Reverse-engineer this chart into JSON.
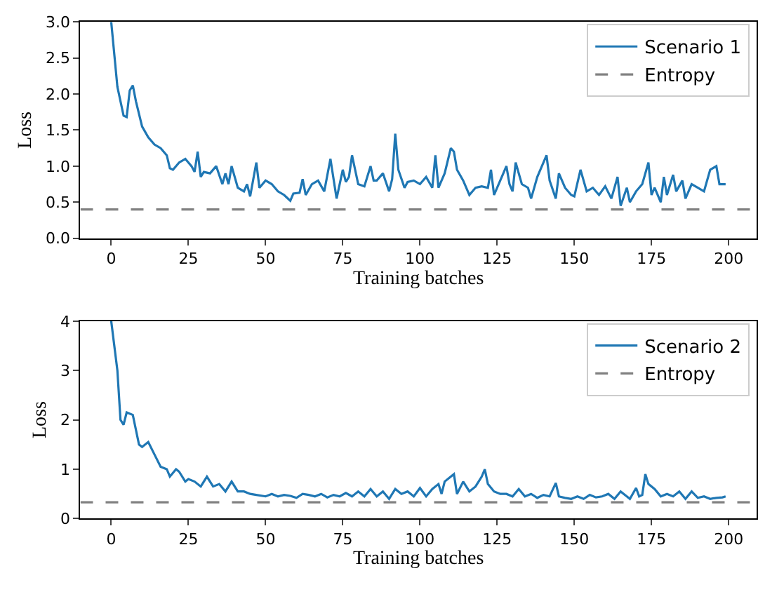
{
  "chart_data": [
    {
      "type": "line",
      "xlabel": "Training batches",
      "ylabel": "Loss",
      "xlim": [
        -10,
        209
      ],
      "xticks": [
        0,
        25,
        50,
        75,
        100,
        125,
        150,
        175,
        200
      ],
      "ylim": [
        0,
        3
      ],
      "yticks": [
        {
          "value": 0,
          "label": "0.0"
        },
        0.5,
        {
          "value": 1,
          "label": "1.0"
        },
        1.5,
        {
          "value": 2,
          "label": "2.0"
        },
        2.5,
        {
          "value": 3,
          "label": "3.0"
        }
      ],
      "legend": "top right",
      "line_style": "solid",
      "series": [
        {
          "name": "Scenario 1",
          "color": "#1f77b4",
          "x": [
            0,
            2,
            4,
            5,
            6,
            7,
            8,
            10,
            12,
            14,
            16,
            18,
            19,
            20,
            22,
            24,
            26,
            27,
            28,
            29,
            30,
            32,
            34,
            36,
            37,
            38,
            39,
            41,
            43,
            44,
            45,
            47,
            48,
            50,
            52,
            54,
            56,
            58,
            59,
            61,
            62,
            63,
            65,
            67,
            69,
            71,
            73,
            75,
            76,
            77,
            78,
            80,
            82,
            84,
            85,
            86,
            88,
            90,
            91,
            92,
            93,
            95,
            96,
            98,
            100,
            102,
            104,
            105,
            106,
            108,
            110,
            111,
            112,
            114,
            116,
            118,
            120,
            122,
            123,
            124,
            126,
            128,
            129,
            130,
            131,
            133,
            135,
            136,
            138,
            140,
            141,
            142,
            144,
            145,
            147,
            149,
            150,
            152,
            154,
            156,
            158,
            160,
            162,
            164,
            165,
            167,
            168,
            170,
            172,
            174,
            175,
            176,
            178,
            179,
            180,
            182,
            183,
            185,
            186,
            188,
            190,
            192,
            194,
            196,
            197,
            199
          ],
          "values": [
            3.0,
            2.1,
            1.7,
            1.68,
            2.05,
            2.12,
            1.9,
            1.55,
            1.4,
            1.3,
            1.25,
            1.15,
            0.97,
            0.95,
            1.05,
            1.1,
            1.0,
            0.92,
            1.2,
            0.85,
            0.92,
            0.9,
            1.0,
            0.75,
            0.9,
            0.75,
            1.0,
            0.7,
            0.65,
            0.75,
            0.58,
            1.05,
            0.7,
            0.8,
            0.75,
            0.65,
            0.6,
            0.52,
            0.62,
            0.63,
            0.82,
            0.6,
            0.75,
            0.8,
            0.65,
            1.1,
            0.55,
            0.95,
            0.78,
            0.85,
            1.15,
            0.75,
            0.72,
            1.0,
            0.8,
            0.8,
            0.9,
            0.65,
            0.82,
            1.45,
            0.95,
            0.7,
            0.78,
            0.8,
            0.75,
            0.85,
            0.7,
            1.15,
            0.7,
            0.9,
            1.25,
            1.2,
            0.95,
            0.8,
            0.6,
            0.7,
            0.72,
            0.7,
            0.95,
            0.6,
            0.8,
            1.0,
            0.75,
            0.65,
            1.05,
            0.75,
            0.7,
            0.55,
            0.85,
            1.05,
            1.15,
            0.8,
            0.55,
            0.9,
            0.7,
            0.6,
            0.58,
            0.95,
            0.65,
            0.7,
            0.6,
            0.72,
            0.55,
            0.85,
            0.45,
            0.7,
            0.5,
            0.65,
            0.75,
            1.05,
            0.6,
            0.7,
            0.5,
            0.85,
            0.6,
            0.88,
            0.65,
            0.8,
            0.55,
            0.75,
            0.7,
            0.65,
            0.95,
            1.0,
            0.75,
            0.75
          ]
        }
      ],
      "ref_lines": [
        {
          "axis": "y",
          "value": 0.4,
          "label": "Entropy",
          "color": "#808080",
          "line_style": "dashed"
        }
      ]
    },
    {
      "type": "line",
      "xlabel": "Training batches",
      "ylabel": "Loss",
      "xlim": [
        -10,
        209
      ],
      "xticks": [
        0,
        25,
        50,
        75,
        100,
        125,
        150,
        175,
        200
      ],
      "ylim": [
        0,
        4
      ],
      "yticks": [
        0,
        1,
        2,
        3,
        4
      ],
      "legend": "top right",
      "line_style": "solid",
      "series": [
        {
          "name": "Scenario 2",
          "color": "#1f77b4",
          "x": [
            0,
            2,
            3,
            4,
            5,
            7,
            9,
            10,
            12,
            14,
            16,
            18,
            19,
            21,
            22,
            24,
            25,
            27,
            29,
            31,
            33,
            35,
            37,
            39,
            41,
            43,
            45,
            47,
            50,
            52,
            54,
            56,
            58,
            60,
            62,
            64,
            66,
            68,
            70,
            72,
            74,
            76,
            78,
            80,
            82,
            84,
            86,
            88,
            90,
            92,
            94,
            96,
            98,
            100,
            102,
            104,
            106,
            107,
            108,
            110,
            111,
            112,
            114,
            116,
            118,
            120,
            121,
            122,
            124,
            126,
            128,
            130,
            132,
            134,
            136,
            138,
            140,
            142,
            144,
            145,
            147,
            149,
            151,
            153,
            155,
            157,
            159,
            161,
            163,
            165,
            167,
            168,
            170,
            171,
            172,
            173,
            174,
            176,
            178,
            180,
            182,
            184,
            186,
            188,
            190,
            192,
            194,
            196,
            198,
            199
          ],
          "values": [
            4.0,
            3.0,
            2.0,
            1.9,
            2.15,
            2.1,
            1.5,
            1.45,
            1.55,
            1.3,
            1.05,
            1.0,
            0.85,
            1.0,
            0.95,
            0.75,
            0.8,
            0.75,
            0.65,
            0.85,
            0.65,
            0.7,
            0.55,
            0.75,
            0.55,
            0.55,
            0.5,
            0.48,
            0.45,
            0.5,
            0.45,
            0.48,
            0.46,
            0.42,
            0.5,
            0.48,
            0.45,
            0.5,
            0.43,
            0.48,
            0.45,
            0.52,
            0.45,
            0.55,
            0.45,
            0.6,
            0.45,
            0.55,
            0.4,
            0.6,
            0.5,
            0.55,
            0.45,
            0.62,
            0.45,
            0.6,
            0.7,
            0.5,
            0.75,
            0.85,
            0.9,
            0.5,
            0.75,
            0.55,
            0.65,
            0.85,
            1.0,
            0.7,
            0.55,
            0.5,
            0.5,
            0.45,
            0.6,
            0.45,
            0.5,
            0.42,
            0.48,
            0.45,
            0.72,
            0.45,
            0.42,
            0.4,
            0.45,
            0.4,
            0.48,
            0.43,
            0.45,
            0.5,
            0.4,
            0.55,
            0.45,
            0.4,
            0.62,
            0.45,
            0.48,
            0.9,
            0.7,
            0.6,
            0.45,
            0.5,
            0.45,
            0.55,
            0.4,
            0.55,
            0.42,
            0.45,
            0.4,
            0.42,
            0.43,
            0.45
          ]
        }
      ],
      "ref_lines": [
        {
          "axis": "y",
          "value": 0.33,
          "label": "Entropy",
          "color": "#808080",
          "line_style": "dashed"
        }
      ]
    }
  ]
}
